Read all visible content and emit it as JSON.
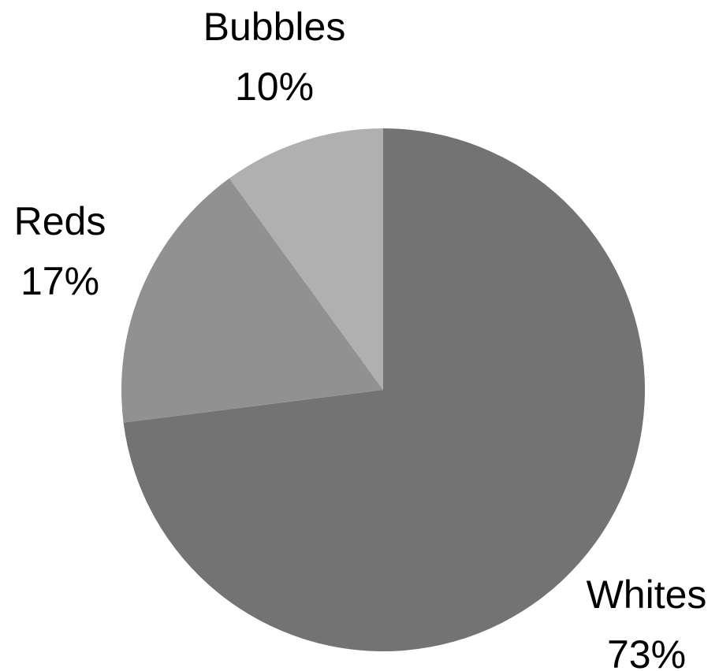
{
  "chart_data": {
    "type": "pie",
    "title": "",
    "slices": [
      {
        "label": "Whites",
        "value": 73,
        "value_label": "73%",
        "color": "#737373"
      },
      {
        "label": "Reds",
        "value": 17,
        "value_label": "17%",
        "color": "#919191"
      },
      {
        "label": "Bubbles",
        "value": 10,
        "value_label": "10%",
        "color": "#b0b0b0"
      }
    ],
    "start_angle": "12 o'clock",
    "direction": "clockwise",
    "legend": "none",
    "labels_outside": true
  }
}
